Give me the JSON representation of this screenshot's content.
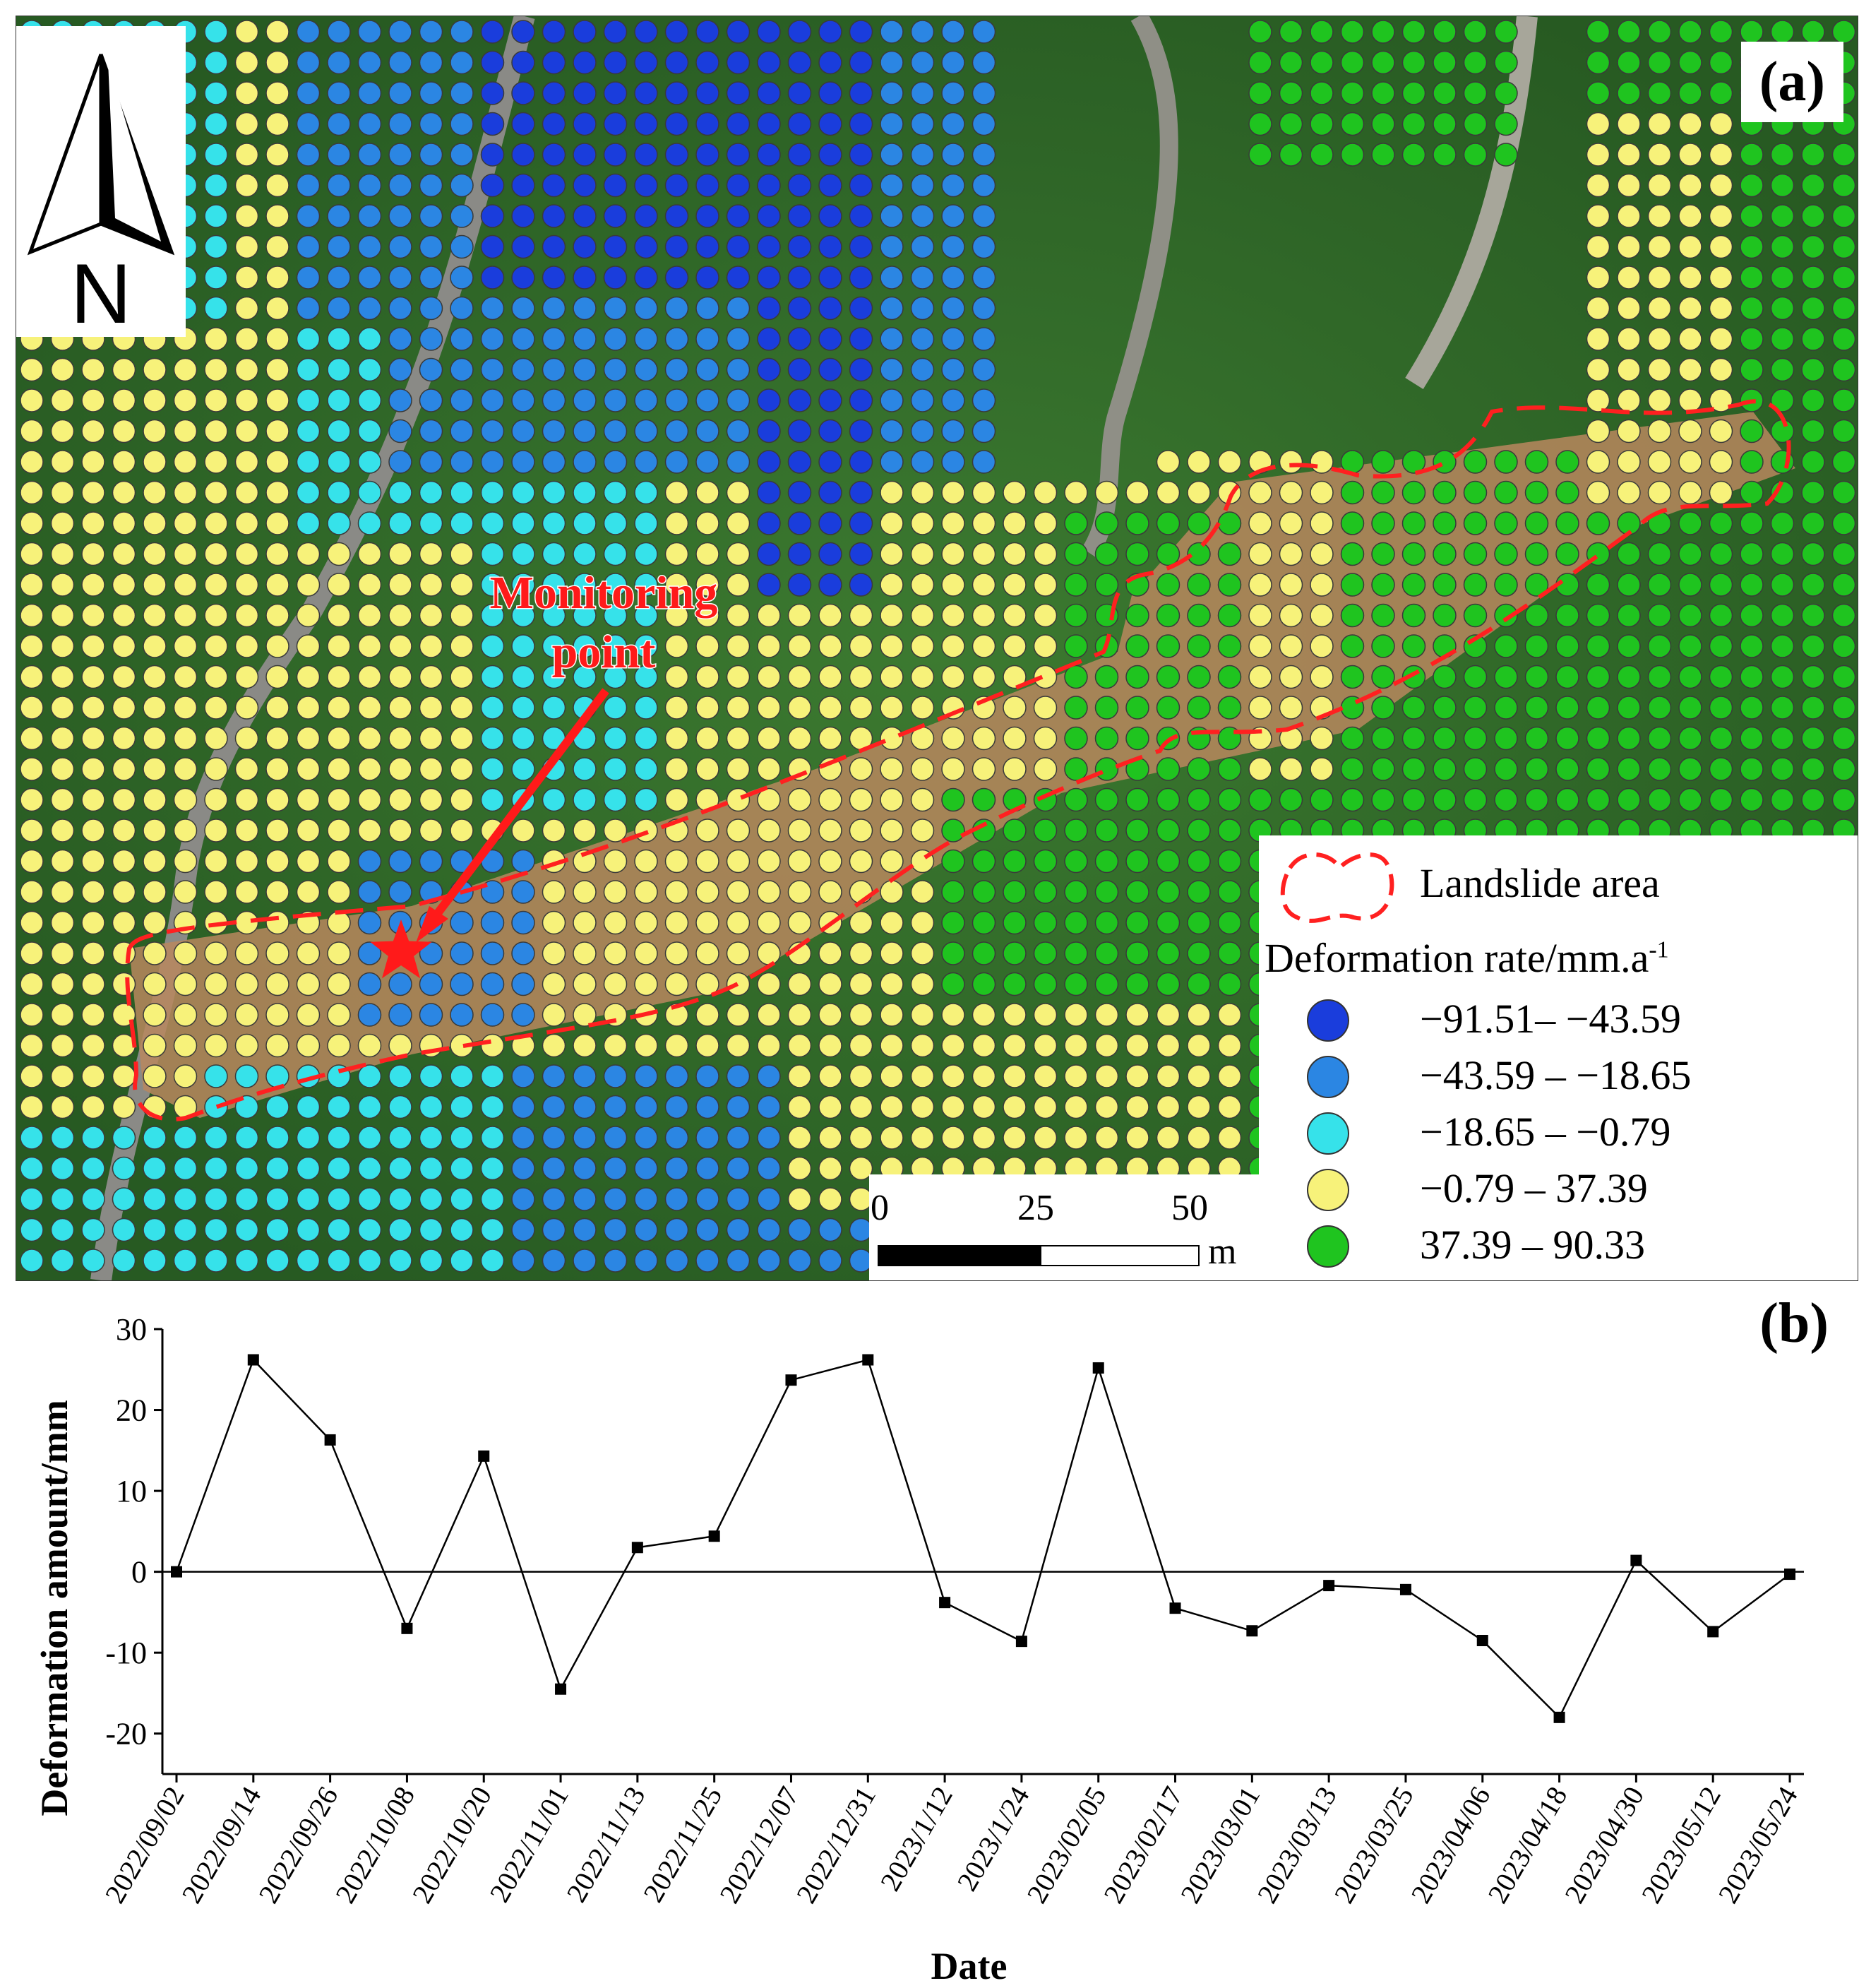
{
  "panel_a": {
    "label": "(a)",
    "north_label": "N",
    "annotation": {
      "line1": "Monitoring",
      "line2": "point"
    },
    "legend": {
      "area_label": "Landslide area",
      "rate_title": "Deformation rate/mm.a",
      "rate_sup": "-1",
      "classes": [
        {
          "label": "−91.51– −43.59",
          "color": "#1a3ddc"
        },
        {
          "label": "−43.59 – −18.65",
          "color": "#2b86e3"
        },
        {
          "label": "−18.65 – −0.79",
          "color": "#36e2ea"
        },
        {
          "label": "−0.79 – 37.39",
          "color": "#f7f27a"
        },
        {
          "label": "37.39 – 90.33",
          "color": "#1fc41f"
        }
      ]
    },
    "scale_bar": {
      "ticks": [
        "0",
        "25",
        "50"
      ],
      "unit": "m"
    },
    "colors": {
      "outline": "#ff2020",
      "star": "#ff1a1a",
      "arrow": "#ff1a1a"
    }
  },
  "chart_data": {
    "type": "line",
    "panel_label": "(b)",
    "xlabel": "Date",
    "ylabel": "Deformation amount/mm",
    "ylim": [
      -25,
      30
    ],
    "yticks": [
      -20,
      -10,
      0,
      10,
      20,
      30
    ],
    "x": [
      "2022/09/02",
      "2022/09/14",
      "2022/09/26",
      "2022/10/08",
      "2022/10/20",
      "2022/11/01",
      "2022/11/13",
      "2022/11/25",
      "2022/12/07",
      "2022/12/31",
      "2023/1/12",
      "2023/1/24",
      "2023/02/05",
      "2023/02/17",
      "2023/03/01",
      "2023/03/13",
      "2023/03/25",
      "2023/04/06",
      "2023/04/18",
      "2023/04/30",
      "2023/05/12",
      "2023/05/24"
    ],
    "series": [
      {
        "values": [
          0,
          26.2,
          16.3,
          -7,
          14.3,
          -14.5,
          3,
          4.4,
          23.7,
          26.2,
          -3.8,
          -8.6,
          25.2,
          -4.5,
          -7.3,
          -1.7,
          -2.2,
          -8.5,
          -18,
          1.4,
          -7.4,
          -0.3
        ]
      }
    ],
    "zero_line": true,
    "grid": false
  }
}
